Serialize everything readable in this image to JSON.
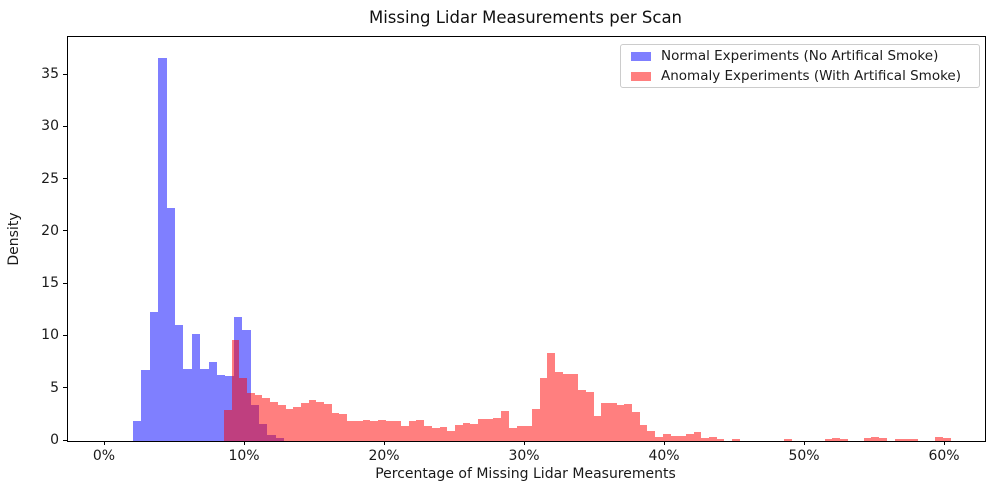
{
  "title": "Missing Lidar Measurements per Scan",
  "axes": {
    "xlabel": "Percentage of Missing Lidar Measurements",
    "ylabel": "Density",
    "x_tick_labels": [
      "0%",
      "10%",
      "20%",
      "30%",
      "40%",
      "50%",
      "60%"
    ],
    "y_tick_labels": [
      "0",
      "5",
      "10",
      "15",
      "20",
      "25",
      "30",
      "35"
    ]
  },
  "legend": {
    "items": [
      {
        "label": "Normal Experiments (No Artifical Smoke)",
        "color": "#7f7fff"
      },
      {
        "label": "Anomaly Experiments (With Artifical Smoke)",
        "color": "#ff7f7f"
      }
    ]
  },
  "chart_data": {
    "type": "bar",
    "subtype": "overlaid-histograms",
    "title": "Missing Lidar Measurements per Scan",
    "xlabel": "Percentage of Missing Lidar Measurements",
    "ylabel": "Density",
    "xlim": [
      -2.64,
      62.86
    ],
    "ylim": [
      0,
      38.63
    ],
    "x_tick_values": [
      0,
      10,
      20,
      30,
      40,
      50,
      60
    ],
    "y_tick_values": [
      0,
      5,
      10,
      15,
      20,
      25,
      30,
      35
    ],
    "grid": false,
    "legend_position": "upper right",
    "overlap_color": "#bf3f7f",
    "series": [
      {
        "name": "Normal Experiments (No Artifical Smoke)",
        "color": "#7f7fff",
        "render_color": "rgba(127,127,255,1)",
        "bin_width_percent": 0.6,
        "bins_x_height": [
          [
            2.0,
            1.9
          ],
          [
            2.6,
            6.8
          ],
          [
            3.2,
            12.3
          ],
          [
            3.8,
            36.6
          ],
          [
            4.4,
            22.3
          ],
          [
            5.0,
            11.1
          ],
          [
            5.6,
            6.9
          ],
          [
            6.2,
            10.2
          ],
          [
            6.8,
            6.9
          ],
          [
            7.4,
            7.6
          ],
          [
            8.0,
            6.3
          ],
          [
            8.6,
            6.2
          ],
          [
            9.2,
            11.9
          ],
          [
            9.8,
            10.6
          ],
          [
            10.4,
            3.4
          ],
          [
            11.0,
            1.6
          ],
          [
            11.6,
            0.6
          ],
          [
            12.2,
            0.3
          ]
        ]
      },
      {
        "name": "Anomaly Experiments (With Artifical Smoke)",
        "color": "#ff7f7f",
        "render_color": "rgba(255,0,0,0.5)",
        "bin_width_percent": 0.55,
        "bins_x_height": [
          [
            8.5,
            3.0
          ],
          [
            9.05,
            9.7
          ],
          [
            9.6,
            6.0
          ],
          [
            10.15,
            4.6
          ],
          [
            10.7,
            4.4
          ],
          [
            11.25,
            4.1
          ],
          [
            11.8,
            3.7
          ],
          [
            12.35,
            3.4
          ],
          [
            12.9,
            3.1
          ],
          [
            13.45,
            3.3
          ],
          [
            14.0,
            3.6
          ],
          [
            14.55,
            3.9
          ],
          [
            15.1,
            3.7
          ],
          [
            15.65,
            3.5
          ],
          [
            16.2,
            2.7
          ],
          [
            16.75,
            2.6
          ],
          [
            17.3,
            1.9
          ],
          [
            17.85,
            1.9
          ],
          [
            18.4,
            2.0
          ],
          [
            18.95,
            1.9
          ],
          [
            19.5,
            2.0
          ],
          [
            20.05,
            1.9
          ],
          [
            20.6,
            1.9
          ],
          [
            21.15,
            1.4
          ],
          [
            21.7,
            1.9
          ],
          [
            22.25,
            2.0
          ],
          [
            22.8,
            1.4
          ],
          [
            23.35,
            1.2
          ],
          [
            23.9,
            1.3
          ],
          [
            24.45,
            1.0
          ],
          [
            25.0,
            1.5
          ],
          [
            25.55,
            1.7
          ],
          [
            26.1,
            1.6
          ],
          [
            26.65,
            2.1
          ],
          [
            27.2,
            2.1
          ],
          [
            27.75,
            2.2
          ],
          [
            28.3,
            2.9
          ],
          [
            28.85,
            1.2
          ],
          [
            29.4,
            1.4
          ],
          [
            29.95,
            1.4
          ],
          [
            30.5,
            3.1
          ],
          [
            31.05,
            6.0
          ],
          [
            31.6,
            8.4
          ],
          [
            32.15,
            6.6
          ],
          [
            32.7,
            6.4
          ],
          [
            33.25,
            6.4
          ],
          [
            33.8,
            4.9
          ],
          [
            34.35,
            4.7
          ],
          [
            34.9,
            2.4
          ],
          [
            35.45,
            3.6
          ],
          [
            36.0,
            3.6
          ],
          [
            36.55,
            3.4
          ],
          [
            37.1,
            3.5
          ],
          [
            37.65,
            2.8
          ],
          [
            38.2,
            1.5
          ],
          [
            38.75,
            0.95
          ],
          [
            39.3,
            0.4
          ],
          [
            39.85,
            0.65
          ],
          [
            40.4,
            0.5
          ],
          [
            40.95,
            0.5
          ],
          [
            41.5,
            0.65
          ],
          [
            42.05,
            0.85
          ],
          [
            42.6,
            0.3
          ],
          [
            43.15,
            0.4
          ],
          [
            43.7,
            0.2
          ],
          [
            44.8,
            0.15
          ],
          [
            48.5,
            0.15
          ],
          [
            51.4,
            0.2
          ],
          [
            51.95,
            0.25
          ],
          [
            52.5,
            0.2
          ],
          [
            54.2,
            0.3
          ],
          [
            54.75,
            0.35
          ],
          [
            55.3,
            0.3
          ],
          [
            56.4,
            0.15
          ],
          [
            56.95,
            0.2
          ],
          [
            57.5,
            0.2
          ],
          [
            59.3,
            0.35
          ],
          [
            59.85,
            0.25
          ]
        ]
      }
    ]
  }
}
